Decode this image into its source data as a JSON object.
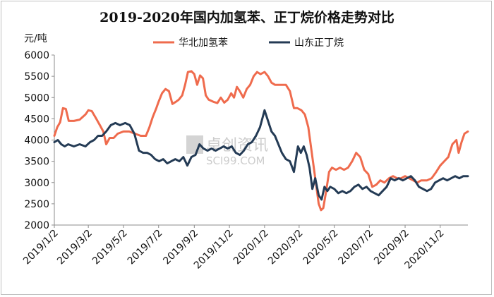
{
  "chart_data": {
    "type": "line",
    "title": "2019-2020年国内加氢苯、正丁烷价格走势对比",
    "ylabel": "元/吨",
    "ylim": [
      2000,
      6000
    ],
    "yticks": [
      "6000",
      "5500",
      "5000",
      "4500",
      "4000",
      "3500",
      "3000",
      "2500",
      "2000"
    ],
    "xlim": [
      "2019/1/2",
      "2020/12/20"
    ],
    "xticks": [
      "2019/1/2",
      "2019/3/2",
      "2019/5/2",
      "2019/7/2",
      "2019/9/2",
      "2019/11/2",
      "2020/1/2",
      "2020/3/2",
      "2020/5/2",
      "2020/7/2",
      "2020/9/2",
      "2020/11/2"
    ],
    "legend_position": "top",
    "watermark": "卓创资讯 SCI99.COM",
    "series": [
      {
        "name": "华北加氢苯",
        "color": "#ef6b4d",
        "points": [
          [
            "2019/1/2",
            4100
          ],
          [
            "2019/1/7",
            4300
          ],
          [
            "2019/1/12",
            4420
          ],
          [
            "2019/1/17",
            4750
          ],
          [
            "2019/1/22",
            4730
          ],
          [
            "2019/1/27",
            4450
          ],
          [
            "2019/2/5",
            4450
          ],
          [
            "2019/2/15",
            4480
          ],
          [
            "2019/2/25",
            4600
          ],
          [
            "2019/3/2",
            4700
          ],
          [
            "2019/3/8",
            4680
          ],
          [
            "2019/3/15",
            4520
          ],
          [
            "2019/3/22",
            4350
          ],
          [
            "2019/3/28",
            4200
          ],
          [
            "2019/4/2",
            3900
          ],
          [
            "2019/4/8",
            4050
          ],
          [
            "2019/4/15",
            4050
          ],
          [
            "2019/4/22",
            4150
          ],
          [
            "2019/5/2",
            4200
          ],
          [
            "2019/5/12",
            4200
          ],
          [
            "2019/5/22",
            4150
          ],
          [
            "2019/6/1",
            4100
          ],
          [
            "2019/6/10",
            4100
          ],
          [
            "2019/6/16",
            4300
          ],
          [
            "2019/6/22",
            4550
          ],
          [
            "2019/6/28",
            4750
          ],
          [
            "2019/7/2",
            4900
          ],
          [
            "2019/7/8",
            5100
          ],
          [
            "2019/7/14",
            5200
          ],
          [
            "2019/7/20",
            5150
          ],
          [
            "2019/7/26",
            4850
          ],
          [
            "2019/8/1",
            4900
          ],
          [
            "2019/8/6",
            4950
          ],
          [
            "2019/8/12",
            5050
          ],
          [
            "2019/8/17",
            5300
          ],
          [
            "2019/8/22",
            5600
          ],
          [
            "2019/8/28",
            5620
          ],
          [
            "2019/9/2",
            5550
          ],
          [
            "2019/9/7",
            5300
          ],
          [
            "2019/9/12",
            5520
          ],
          [
            "2019/9/17",
            5450
          ],
          [
            "2019/9/22",
            5050
          ],
          [
            "2019/9/27",
            4950
          ],
          [
            "2019/10/5",
            4900
          ],
          [
            "2019/10/12",
            4870
          ],
          [
            "2019/10/18",
            5000
          ],
          [
            "2019/10/24",
            4880
          ],
          [
            "2019/10/30",
            4950
          ],
          [
            "2019/11/5",
            5100
          ],
          [
            "2019/11/10",
            5000
          ],
          [
            "2019/11/15",
            5250
          ],
          [
            "2019/11/20",
            5150
          ],
          [
            "2019/11/26",
            5000
          ],
          [
            "2019/12/2",
            5200
          ],
          [
            "2019/12/8",
            5300
          ],
          [
            "2019/12/14",
            5500
          ],
          [
            "2019/12/20",
            5600
          ],
          [
            "2019/12/26",
            5550
          ],
          [
            "2020/1/2",
            5600
          ],
          [
            "2020/1/8",
            5500
          ],
          [
            "2020/1/14",
            5350
          ],
          [
            "2020/1/20",
            5300
          ],
          [
            "2020/2/1",
            5300
          ],
          [
            "2020/2/8",
            5300
          ],
          [
            "2020/2/15",
            5150
          ],
          [
            "2020/2/22",
            4750
          ],
          [
            "2020/2/28",
            4750
          ],
          [
            "2020/3/6",
            4700
          ],
          [
            "2020/3/12",
            4600
          ],
          [
            "2020/3/18",
            4300
          ],
          [
            "2020/3/24",
            3700
          ],
          [
            "2020/3/30",
            3100
          ],
          [
            "2020/4/5",
            2500
          ],
          [
            "2020/4/9",
            2350
          ],
          [
            "2020/4/13",
            2400
          ],
          [
            "2020/4/18",
            2800
          ],
          [
            "2020/4/23",
            3250
          ],
          [
            "2020/4/28",
            3350
          ],
          [
            "2020/5/5",
            3300
          ],
          [
            "2020/5/12",
            3350
          ],
          [
            "2020/5/19",
            3300
          ],
          [
            "2020/5/26",
            3350
          ],
          [
            "2020/6/2",
            3500
          ],
          [
            "2020/6/9",
            3700
          ],
          [
            "2020/6/16",
            3600
          ],
          [
            "2020/6/23",
            3300
          ],
          [
            "2020/6/30",
            3200
          ],
          [
            "2020/7/7",
            2900
          ],
          [
            "2020/7/14",
            2950
          ],
          [
            "2020/7/21",
            3050
          ],
          [
            "2020/7/28",
            3000
          ],
          [
            "2020/8/5",
            3100
          ],
          [
            "2020/8/12",
            3150
          ],
          [
            "2020/8/19",
            3100
          ],
          [
            "2020/8/26",
            3100
          ],
          [
            "2020/9/2",
            3150
          ],
          [
            "2020/9/9",
            3100
          ],
          [
            "2020/9/16",
            3050
          ],
          [
            "2020/9/23",
            3000
          ],
          [
            "2020/9/30",
            3050
          ],
          [
            "2020/10/10",
            3050
          ],
          [
            "2020/10/18",
            3100
          ],
          [
            "2020/10/26",
            3250
          ],
          [
            "2020/11/2",
            3400
          ],
          [
            "2020/11/9",
            3500
          ],
          [
            "2020/11/16",
            3600
          ],
          [
            "2020/11/23",
            3900
          ],
          [
            "2020/11/30",
            4000
          ],
          [
            "2020/12/4",
            3700
          ],
          [
            "2020/12/9",
            3950
          ],
          [
            "2020/12/14",
            4150
          ],
          [
            "2020/12/20",
            4200
          ]
        ]
      },
      {
        "name": "山东正丁烷",
        "color": "#243b55",
        "points": [
          [
            "2019/1/2",
            3950
          ],
          [
            "2019/1/8",
            4000
          ],
          [
            "2019/1/14",
            3900
          ],
          [
            "2019/1/20",
            3850
          ],
          [
            "2019/1/26",
            3900
          ],
          [
            "2019/2/5",
            3850
          ],
          [
            "2019/2/15",
            3900
          ],
          [
            "2019/2/25",
            3850
          ],
          [
            "2019/3/5",
            3950
          ],
          [
            "2019/3/12",
            4000
          ],
          [
            "2019/3/19",
            4100
          ],
          [
            "2019/3/26",
            4100
          ],
          [
            "2019/4/2",
            4200
          ],
          [
            "2019/4/10",
            4350
          ],
          [
            "2019/4/18",
            4400
          ],
          [
            "2019/4/26",
            4350
          ],
          [
            "2019/5/5",
            4400
          ],
          [
            "2019/5/13",
            4350
          ],
          [
            "2019/5/21",
            4150
          ],
          [
            "2019/5/29",
            3750
          ],
          [
            "2019/6/5",
            3700
          ],
          [
            "2019/6/12",
            3700
          ],
          [
            "2019/6/19",
            3650
          ],
          [
            "2019/6/26",
            3550
          ],
          [
            "2019/7/3",
            3500
          ],
          [
            "2019/7/10",
            3550
          ],
          [
            "2019/7/17",
            3450
          ],
          [
            "2019/7/24",
            3500
          ],
          [
            "2019/7/31",
            3550
          ],
          [
            "2019/8/7",
            3500
          ],
          [
            "2019/8/14",
            3600
          ],
          [
            "2019/8/21",
            3400
          ],
          [
            "2019/8/28",
            3600
          ],
          [
            "2019/9/4",
            3650
          ],
          [
            "2019/9/11",
            3900
          ],
          [
            "2019/9/18",
            3800
          ],
          [
            "2019/9/25",
            3750
          ],
          [
            "2019/10/2",
            3800
          ],
          [
            "2019/10/9",
            3750
          ],
          [
            "2019/10/16",
            3800
          ],
          [
            "2019/10/23",
            3850
          ],
          [
            "2019/10/30",
            3800
          ],
          [
            "2019/11/6",
            3850
          ],
          [
            "2019/11/13",
            3700
          ],
          [
            "2019/11/20",
            3650
          ],
          [
            "2019/11/27",
            3750
          ],
          [
            "2019/12/4",
            3900
          ],
          [
            "2019/12/11",
            3950
          ],
          [
            "2019/12/18",
            4100
          ],
          [
            "2019/12/25",
            4300
          ],
          [
            "2020/1/2",
            4700
          ],
          [
            "2020/1/8",
            4450
          ],
          [
            "2020/1/14",
            4200
          ],
          [
            "2020/1/20",
            4100
          ],
          [
            "2020/2/1",
            3700
          ],
          [
            "2020/2/8",
            3550
          ],
          [
            "2020/2/15",
            3500
          ],
          [
            "2020/2/22",
            3250
          ],
          [
            "2020/2/29",
            3850
          ],
          [
            "2020/3/5",
            3700
          ],
          [
            "2020/3/10",
            3850
          ],
          [
            "2020/3/15",
            3650
          ],
          [
            "2020/3/20",
            3350
          ],
          [
            "2020/3/25",
            2850
          ],
          [
            "2020/3/30",
            3100
          ],
          [
            "2020/4/5",
            2700
          ],
          [
            "2020/4/10",
            2600
          ],
          [
            "2020/4/15",
            2900
          ],
          [
            "2020/4/20",
            2800
          ],
          [
            "2020/4/25",
            2900
          ],
          [
            "2020/5/2",
            2850
          ],
          [
            "2020/5/9",
            2750
          ],
          [
            "2020/5/16",
            2800
          ],
          [
            "2020/5/23",
            2750
          ],
          [
            "2020/5/30",
            2800
          ],
          [
            "2020/6/6",
            2900
          ],
          [
            "2020/6/13",
            2950
          ],
          [
            "2020/6/20",
            2850
          ],
          [
            "2020/6/27",
            2900
          ],
          [
            "2020/7/4",
            2800
          ],
          [
            "2020/7/11",
            2750
          ],
          [
            "2020/7/18",
            2700
          ],
          [
            "2020/7/25",
            2800
          ],
          [
            "2020/8/1",
            2900
          ],
          [
            "2020/8/8",
            3100
          ],
          [
            "2020/8/15",
            3050
          ],
          [
            "2020/8/22",
            3100
          ],
          [
            "2020/8/29",
            3050
          ],
          [
            "2020/9/5",
            3100
          ],
          [
            "2020/9/12",
            3150
          ],
          [
            "2020/9/19",
            3050
          ],
          [
            "2020/9/26",
            2900
          ],
          [
            "2020/10/3",
            2850
          ],
          [
            "2020/10/10",
            2800
          ],
          [
            "2020/10/17",
            2850
          ],
          [
            "2020/10/24",
            3000
          ],
          [
            "2020/10/31",
            3050
          ],
          [
            "2020/11/7",
            3100
          ],
          [
            "2020/11/14",
            3050
          ],
          [
            "2020/11/21",
            3100
          ],
          [
            "2020/11/28",
            3150
          ],
          [
            "2020/12/5",
            3100
          ],
          [
            "2020/12/12",
            3150
          ],
          [
            "2020/12/20",
            3150
          ]
        ]
      }
    ]
  }
}
